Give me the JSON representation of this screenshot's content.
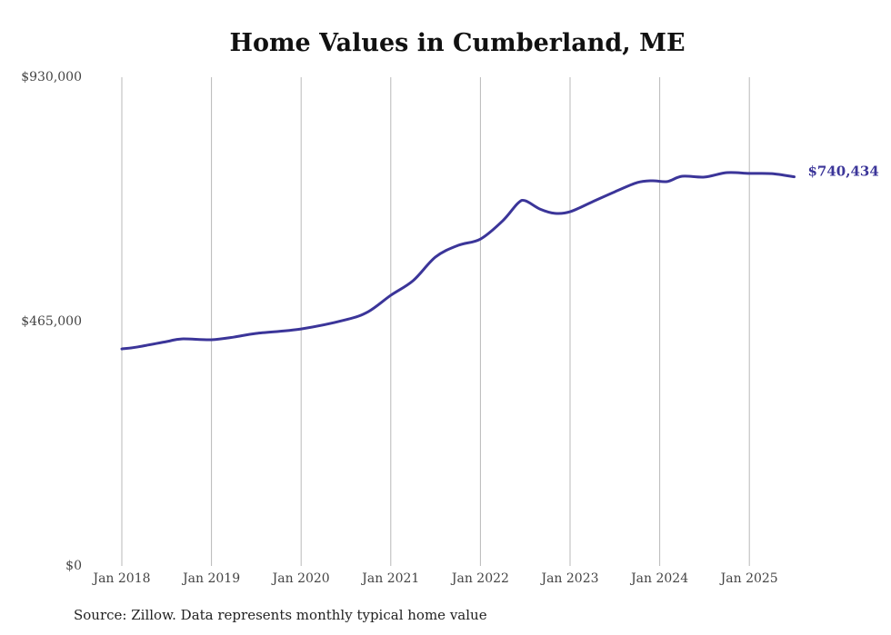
{
  "chart_data": {
    "type": "line",
    "title": "Home Values in Cumberland, ME",
    "xlabel": "",
    "ylabel": "",
    "ylim": [
      0,
      930000
    ],
    "yticks": [
      "$0",
      "$465,000",
      "$930,000"
    ],
    "ytick_values": [
      0,
      465000,
      930000
    ],
    "xticks": [
      "Jan 2018",
      "Jan 2019",
      "Jan 2020",
      "Jan 2021",
      "Jan 2022",
      "Jan 2023",
      "Jan 2024",
      "Jan 2025"
    ],
    "grid": "vertical",
    "series": [
      {
        "name": "Typical home value",
        "color": "#3b3599",
        "x": [
          "2018-01",
          "2018-03",
          "2018-07",
          "2018-09",
          "2019-01",
          "2019-04",
          "2019-07",
          "2020-01",
          "2020-07",
          "2020-10",
          "2021-01",
          "2021-04",
          "2021-07",
          "2021-10",
          "2022-01",
          "2022-04",
          "2022-06",
          "2022-07",
          "2022-09",
          "2022-11",
          "2023-01",
          "2023-04",
          "2023-07",
          "2023-10",
          "2023-12",
          "2024-02",
          "2024-04",
          "2024-07",
          "2024-10",
          "2025-01",
          "2025-04",
          "2025-07"
        ],
        "values": [
          413000,
          416500,
          427000,
          432000,
          430500,
          435500,
          442500,
          451000,
          468500,
          484000,
          515000,
          543000,
          588000,
          610000,
          622000,
          657000,
          690000,
          695000,
          679000,
          671000,
          674000,
          693000,
          712000,
          729500,
          733000,
          731500,
          741500,
          740000,
          748500,
          747000,
          746500,
          740434
        ]
      }
    ],
    "end_label": "$740,434"
  },
  "source": "Source: Zillow. Data represents monthly typical home value"
}
